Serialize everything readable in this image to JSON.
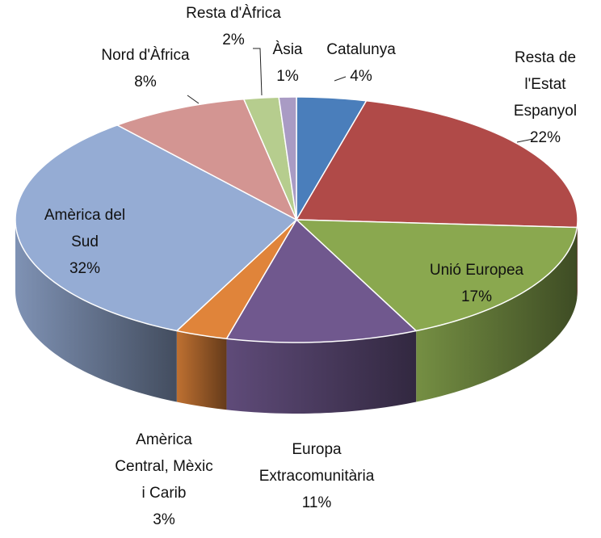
{
  "chart_data": {
    "type": "pie3d",
    "categories": [
      "Catalunya",
      "Resta de l'Estat Espanyol",
      "Unió Europea",
      "Europa Extracomunitària",
      "Amèrica Central, Mèxic i Carib",
      "Amèrica del Sud",
      "Nord d'Àfrica",
      "Resta d'Àfrica",
      "Àsia"
    ],
    "values": [
      4,
      22,
      17,
      11,
      3,
      32,
      8,
      2,
      1
    ],
    "value_labels": [
      "4%",
      "22%",
      "17%",
      "11%",
      "3%",
      "32%",
      "8%",
      "2%",
      "1%"
    ],
    "colors": [
      "#4a7ebb",
      "#b04a48",
      "#8aa84f",
      "#70588e",
      "#e0843a",
      "#95acd4",
      "#d39592",
      "#b6cd8e",
      "#a99bc4"
    ]
  }
}
